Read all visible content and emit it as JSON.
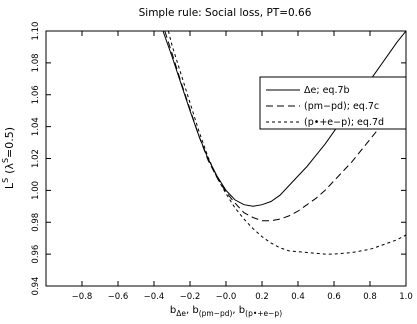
{
  "chart_data": {
    "type": "line",
    "title": "Simple rule: Social loss, PT=0.66",
    "xlabel_base": "b",
    "xlabel_parts": [
      {
        "sub": "Δe",
        "sep": ", "
      },
      {
        "sub": "(pm−pd)",
        "sep": ", "
      },
      {
        "sub": "(p•+e−p)",
        "sep": ""
      }
    ],
    "ylabel_main": "L",
    "ylabel_sup": "S",
    "ylabel_paren": "(λ",
    "ylabel_paren_sup": "S",
    "ylabel_tail": "=0.5)",
    "xlim": [
      -1.0,
      1.0
    ],
    "ylim": [
      0.94,
      1.1
    ],
    "x_ticks": [
      -0.8,
      -0.6,
      -0.4,
      -0.2,
      0.0,
      0.2,
      0.4,
      0.6,
      0.8,
      1.0
    ],
    "x_tick_labels": [
      "−0.8",
      "−0.6",
      "−0.4",
      "−0.2",
      "−0.0",
      "0.2",
      "0.4",
      "0.6",
      "0.8",
      "1.0"
    ],
    "y_ticks": [
      0.94,
      0.96,
      0.98,
      1.0,
      1.02,
      1.04,
      1.06,
      1.08,
      1.1
    ],
    "y_tick_labels": [
      "0.94",
      "0.96",
      "0.98",
      "1.00",
      "1.02",
      "1.04",
      "1.06",
      "1.08",
      "1.10"
    ],
    "grid": false,
    "legend_position": "right",
    "series": [
      {
        "name": "Δe; eq.7b",
        "style": "solid",
        "color": "#000000",
        "x": [
          -0.35,
          -0.3,
          -0.25,
          -0.2,
          -0.15,
          -0.1,
          -0.05,
          0.0,
          0.05,
          0.1,
          0.15,
          0.2,
          0.25,
          0.3,
          0.35,
          0.4,
          0.45,
          0.5,
          0.55,
          0.6,
          0.65,
          0.7,
          0.75,
          0.8,
          0.85,
          0.9,
          0.95,
          1.0
        ],
        "y": [
          1.1,
          1.084,
          1.067,
          1.05,
          1.034,
          1.02,
          1.009,
          1.0,
          0.994,
          0.991,
          0.99,
          0.991,
          0.993,
          0.997,
          1.003,
          1.009,
          1.015,
          1.022,
          1.029,
          1.037,
          1.045,
          1.053,
          1.061,
          1.069,
          1.077,
          1.085,
          1.093,
          1.1
        ]
      },
      {
        "name": "(pm−pd); eq.7c",
        "style": "dashed",
        "color": "#000000",
        "x": [
          -0.34,
          -0.3,
          -0.25,
          -0.2,
          -0.15,
          -0.1,
          -0.05,
          0.0,
          0.05,
          0.1,
          0.15,
          0.2,
          0.25,
          0.3,
          0.35,
          0.4,
          0.45,
          0.5,
          0.55,
          0.6,
          0.65,
          0.7,
          0.75,
          0.8,
          0.85,
          0.9,
          0.95,
          1.0
        ],
        "y": [
          1.1,
          1.086,
          1.068,
          1.051,
          1.034,
          1.019,
          1.008,
          0.999,
          0.992,
          0.986,
          0.983,
          0.981,
          0.981,
          0.982,
          0.984,
          0.987,
          0.991,
          0.995,
          1.0,
          1.006,
          1.012,
          1.018,
          1.025,
          1.032,
          1.039,
          1.046,
          1.053,
          1.06
        ]
      },
      {
        "name": "(p•+e−p); eq.7d",
        "style": "dotted",
        "color": "#000000",
        "x": [
          -0.32,
          -0.3,
          -0.25,
          -0.2,
          -0.15,
          -0.1,
          -0.05,
          0.0,
          0.05,
          0.1,
          0.15,
          0.2,
          0.25,
          0.3,
          0.35,
          0.4,
          0.45,
          0.5,
          0.55,
          0.6,
          0.65,
          0.7,
          0.75,
          0.8,
          0.85,
          0.9,
          0.95,
          1.0
        ],
        "y": [
          1.1,
          1.091,
          1.073,
          1.055,
          1.037,
          1.021,
          1.008,
          0.998,
          0.989,
          0.982,
          0.976,
          0.971,
          0.967,
          0.964,
          0.962,
          0.9615,
          0.961,
          0.9605,
          0.96,
          0.96,
          0.9605,
          0.961,
          0.962,
          0.963,
          0.965,
          0.967,
          0.969,
          0.972
        ]
      }
    ]
  }
}
